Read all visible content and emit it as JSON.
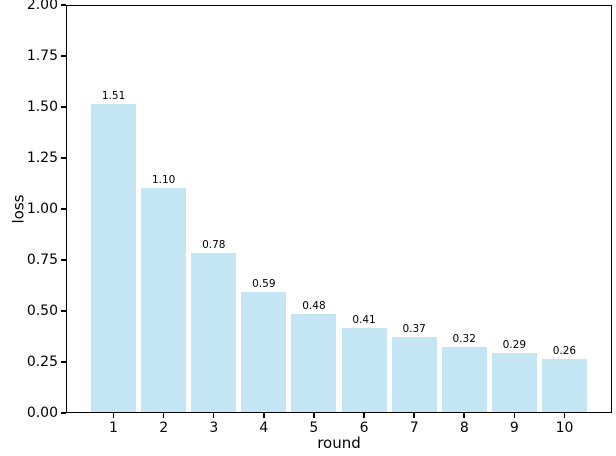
{
  "chart_data": {
    "type": "bar",
    "title": "",
    "xlabel": "round",
    "ylabel": "loss",
    "categories": [
      "1",
      "2",
      "3",
      "4",
      "5",
      "6",
      "7",
      "8",
      "9",
      "10"
    ],
    "values": [
      1.51,
      1.1,
      0.78,
      0.59,
      0.48,
      0.41,
      0.37,
      0.32,
      0.29,
      0.26
    ],
    "bar_value_labels": [
      "1.51",
      "1.10",
      "0.78",
      "0.59",
      "0.48",
      "0.41",
      "0.37",
      "0.32",
      "0.29",
      "0.26"
    ],
    "ylim": [
      0.0,
      2.0
    ],
    "ytick_labels": [
      "0.00",
      "0.25",
      "0.50",
      "0.75",
      "1.00",
      "1.25",
      "1.50",
      "1.75",
      "2.00"
    ],
    "ytick_values": [
      0.0,
      0.25,
      0.5,
      0.75,
      1.0,
      1.25,
      1.5,
      1.75,
      2.0
    ],
    "grid": false,
    "legend": null,
    "bar_color": "#c3e5f4",
    "spine_color": "#000000",
    "text_color": "#000000"
  }
}
